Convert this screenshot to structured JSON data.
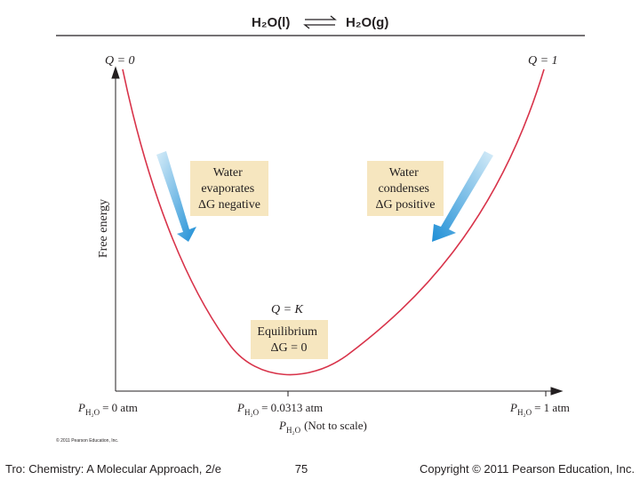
{
  "header": {
    "left": "H₂O(l)",
    "right": "H₂O(g)"
  },
  "figure": {
    "q_left": "Q = 0",
    "q_right": "Q = 1",
    "q_mid": "Q = K",
    "y_axis_label": "Free energy",
    "box_left": [
      "Water",
      "evaporates",
      "ΔG negative"
    ],
    "box_right": [
      "Water",
      "condenses",
      "ΔG positive"
    ],
    "box_mid": [
      "Equilibrium",
      "ΔG = 0"
    ],
    "x_labels": [
      {
        "symbol": "P",
        "subscript": "H₂O",
        "text": "= 0 atm"
      },
      {
        "symbol": "P",
        "subscript": "H₂O",
        "text": "= 0.0313 atm"
      },
      {
        "symbol": "P",
        "subscript": "H₂O",
        "text": "= 1 atm"
      }
    ],
    "x_axis_title": {
      "symbol": "P",
      "subscript": "H₂O",
      "text": "(Not to scale)"
    },
    "credit": "© 2011 Pearson Education, Inc."
  },
  "footer": {
    "left": "Tro: Chemistry: A Molecular Approach, 2/e",
    "page": "75",
    "right": "Copyright © 2011 Pearson Education, Inc."
  }
}
